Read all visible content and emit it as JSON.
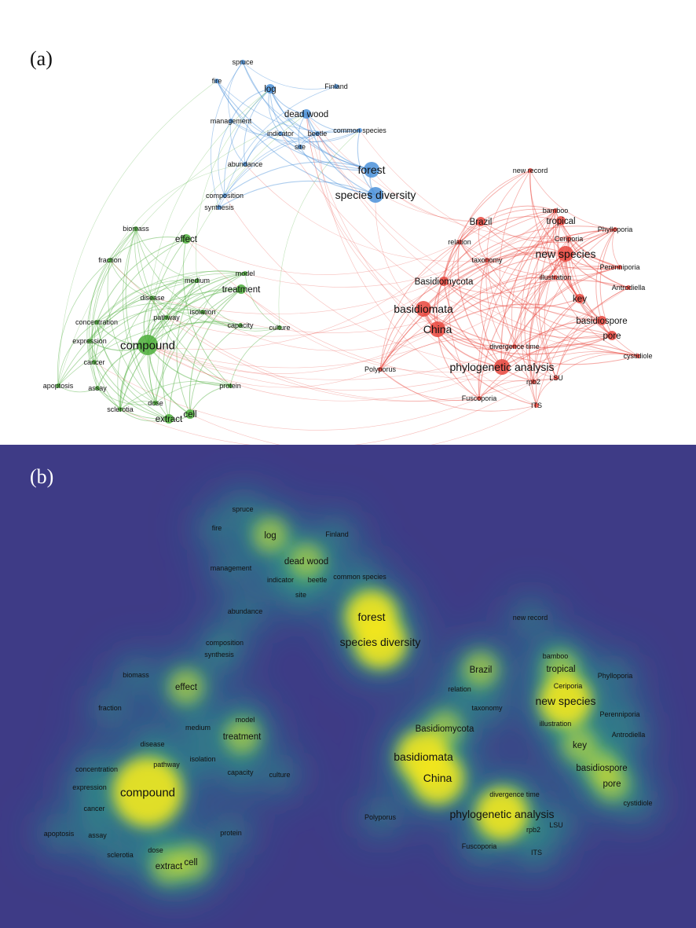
{
  "panel_a": {
    "label": "(a)"
  },
  "panel_b": {
    "label": "(b)"
  },
  "colors": {
    "cluster_blue": "#4a90d9",
    "cluster_green": "#4cae3a",
    "cluster_red": "#e8463d",
    "density_low": "#3e3b86",
    "density_mid": "#21a585",
    "density_high": "#f7e91e"
  },
  "clusters": [
    {
      "name": "blue",
      "color": "#4a90d9",
      "nodes": [
        {
          "label": "spruce",
          "weight": 1
        },
        {
          "label": "fire",
          "weight": 1
        },
        {
          "label": "log",
          "weight": 2
        },
        {
          "label": "Finland",
          "weight": 1
        },
        {
          "label": "management",
          "weight": 1
        },
        {
          "label": "dead wood",
          "weight": 2
        },
        {
          "label": "indicator",
          "weight": 1
        },
        {
          "label": "beetle",
          "weight": 1
        },
        {
          "label": "common species",
          "weight": 1
        },
        {
          "label": "site",
          "weight": 1
        },
        {
          "label": "abundance",
          "weight": 1
        },
        {
          "label": "forest",
          "weight": 3
        },
        {
          "label": "species diversity",
          "weight": 3
        },
        {
          "label": "composition",
          "weight": 1
        },
        {
          "label": "synthesis",
          "weight": 1
        }
      ]
    },
    {
      "name": "green",
      "color": "#4cae3a",
      "nodes": [
        {
          "label": "biomass",
          "weight": 1
        },
        {
          "label": "effect",
          "weight": 2
        },
        {
          "label": "fraction",
          "weight": 1
        },
        {
          "label": "medium",
          "weight": 1
        },
        {
          "label": "model",
          "weight": 1
        },
        {
          "label": "treatment",
          "weight": 2
        },
        {
          "label": "disease",
          "weight": 1
        },
        {
          "label": "isolation",
          "weight": 1
        },
        {
          "label": "pathway",
          "weight": 1
        },
        {
          "label": "concentration",
          "weight": 1
        },
        {
          "label": "capacity",
          "weight": 1
        },
        {
          "label": "culture",
          "weight": 1
        },
        {
          "label": "expression",
          "weight": 1
        },
        {
          "label": "compound",
          "weight": 4
        },
        {
          "label": "cancer",
          "weight": 1
        },
        {
          "label": "apoptosis",
          "weight": 1
        },
        {
          "label": "assay",
          "weight": 1
        },
        {
          "label": "protein",
          "weight": 1
        },
        {
          "label": "dose",
          "weight": 1
        },
        {
          "label": "sclerotia",
          "weight": 1
        },
        {
          "label": "extract",
          "weight": 2
        },
        {
          "label": "cell",
          "weight": 2
        }
      ]
    },
    {
      "name": "red",
      "color": "#e8463d",
      "nodes": [
        {
          "label": "new record",
          "weight": 1
        },
        {
          "label": "bamboo",
          "weight": 1
        },
        {
          "label": "Brazil",
          "weight": 2
        },
        {
          "label": "tropical",
          "weight": 2
        },
        {
          "label": "Phylloporia",
          "weight": 1
        },
        {
          "label": "relation",
          "weight": 1
        },
        {
          "label": "Ceriporia",
          "weight": 1
        },
        {
          "label": "new species",
          "weight": 3
        },
        {
          "label": "taxonomy",
          "weight": 1
        },
        {
          "label": "Perenniporia",
          "weight": 1
        },
        {
          "label": "Basidiomycota",
          "weight": 2
        },
        {
          "label": "illustration",
          "weight": 1
        },
        {
          "label": "Antrodiella",
          "weight": 1
        },
        {
          "label": "basidiomata",
          "weight": 3
        },
        {
          "label": "key",
          "weight": 2
        },
        {
          "label": "basidiospore",
          "weight": 2
        },
        {
          "label": "China",
          "weight": 3
        },
        {
          "label": "pore",
          "weight": 2
        },
        {
          "label": "divergence time",
          "weight": 1
        },
        {
          "label": "cystidiole",
          "weight": 1
        },
        {
          "label": "phylogenetic analysis",
          "weight": 3
        },
        {
          "label": "Polyporus",
          "weight": 1
        },
        {
          "label": "LSU",
          "weight": 1
        },
        {
          "label": "rpb2",
          "weight": 1
        },
        {
          "label": "Fuscoporia",
          "weight": 1
        },
        {
          "label": "ITS",
          "weight": 1
        }
      ]
    }
  ]
}
